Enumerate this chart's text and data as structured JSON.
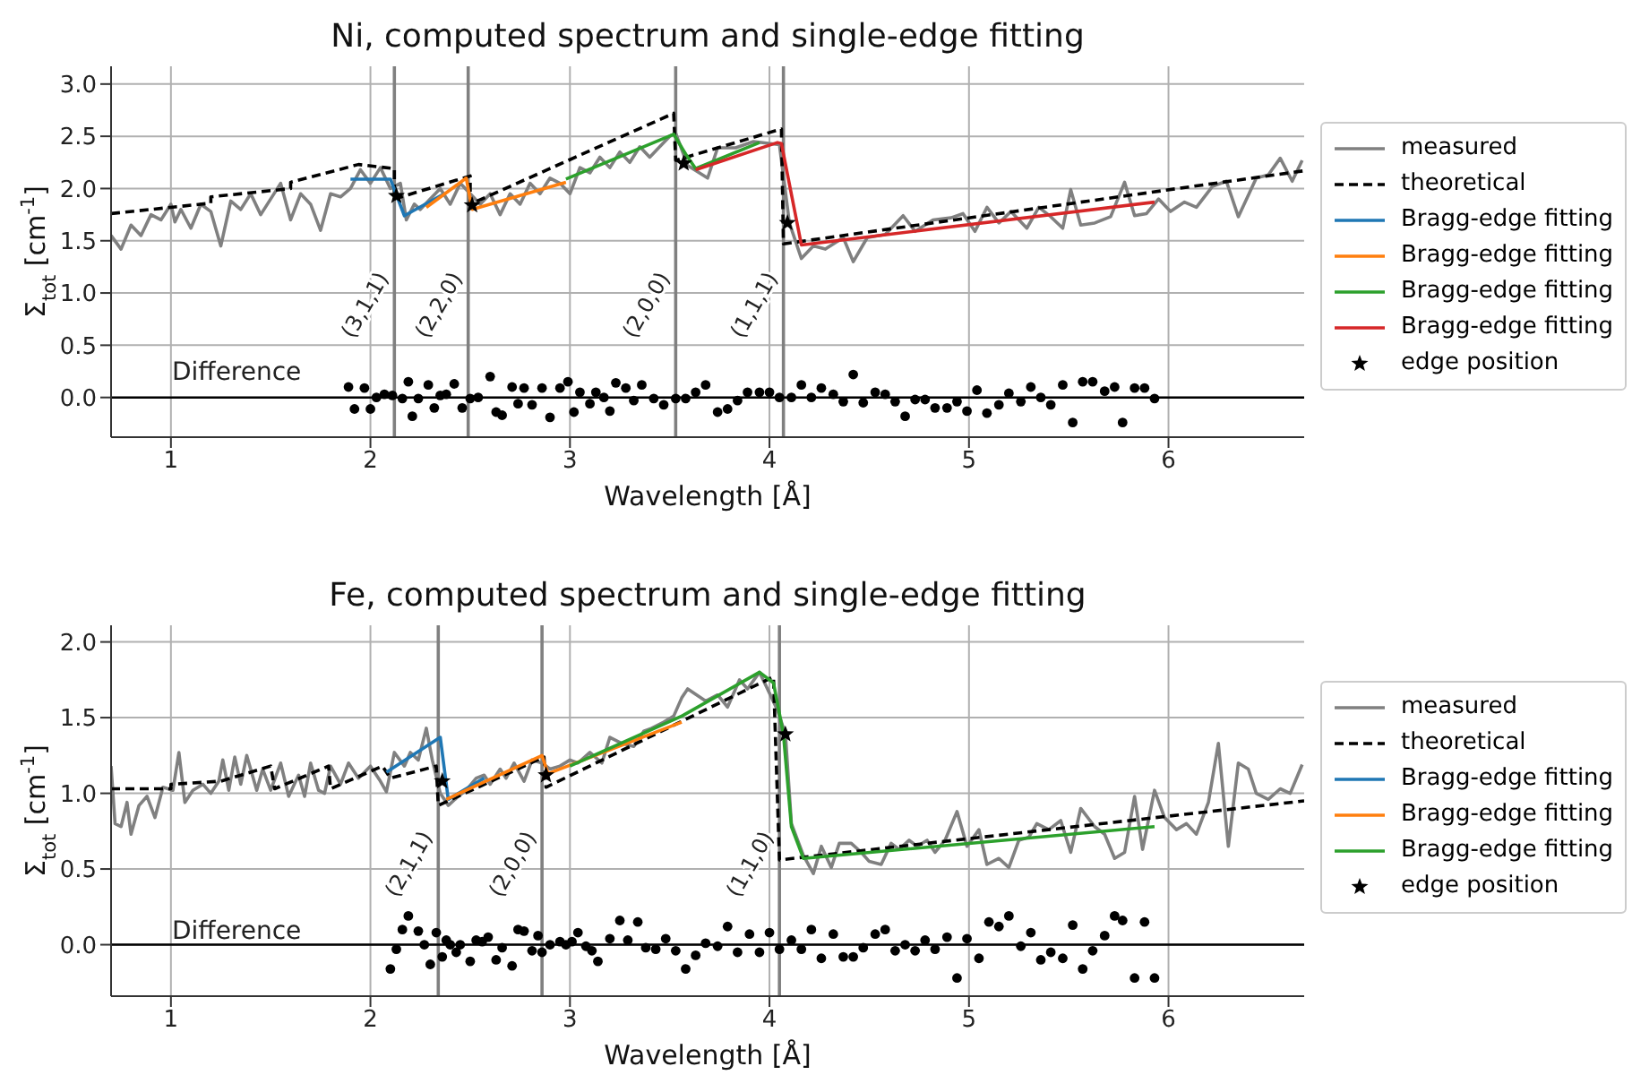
{
  "chart_data": [
    {
      "type": "line",
      "title": "Ni, computed spectrum and single-edge fitting",
      "xlabel": "Wavelength [Å]",
      "ylabel": "Σ$_{tot}$ [cm$^{-1}$]",
      "xlim": [
        0.7,
        6.68
      ],
      "xticks": [
        1,
        2,
        3,
        4,
        5,
        6
      ],
      "ylim": [
        -0.38,
        3.17
      ],
      "yticks": [
        {
          "value": 0,
          "label": "0.0"
        },
        {
          "value": 0.5,
          "label": "0.5"
        },
        {
          "value": 1,
          "label": "1.0"
        },
        {
          "value": 1.5,
          "label": "1.5"
        },
        {
          "value": 2,
          "label": "2.0"
        },
        {
          "value": 2.5,
          "label": "2.5"
        },
        {
          "value": 3,
          "label": "3.0"
        }
      ],
      "grid": true,
      "legend": "right",
      "series": [
        {
          "name": "measured",
          "color": "#808080",
          "x": [
            0.7,
            0.75,
            0.8,
            0.85,
            0.9,
            0.95,
            1.0,
            1.02,
            1.05,
            1.1,
            1.15,
            1.2,
            1.25,
            1.3,
            1.35,
            1.4,
            1.45,
            1.5,
            1.55,
            1.6,
            1.65,
            1.7,
            1.75,
            1.8,
            1.85,
            1.9,
            1.95,
            2.0,
            2.05,
            2.1,
            2.15,
            2.18,
            2.22,
            2.25,
            2.3,
            2.35,
            2.4,
            2.45,
            2.5,
            2.55,
            2.6,
            2.65,
            2.7,
            2.75,
            2.8,
            2.85,
            2.9,
            2.95,
            3.0,
            3.05,
            3.1,
            3.15,
            3.2,
            3.25,
            3.3,
            3.35,
            3.4,
            3.45,
            3.5,
            3.53,
            3.59,
            3.69,
            3.74,
            3.83,
            3.92,
            4.05,
            4.1,
            4.16,
            4.22,
            4.28,
            4.37,
            4.42,
            4.49,
            4.58,
            4.67,
            4.73,
            4.82,
            4.91,
            4.97,
            5.03,
            5.09,
            5.15,
            5.21,
            5.29,
            5.35,
            5.41,
            5.47,
            5.51,
            5.56,
            5.63,
            5.71,
            5.78,
            5.83,
            5.89,
            5.95,
            6.01,
            6.08,
            6.14,
            6.22,
            6.29,
            6.35,
            6.44,
            6.5,
            6.56,
            6.62,
            6.67
          ],
          "values": [
            1.55,
            1.42,
            1.65,
            1.55,
            1.75,
            1.7,
            1.85,
            1.68,
            1.8,
            1.62,
            1.85,
            1.78,
            1.45,
            1.88,
            1.8,
            1.95,
            1.75,
            1.9,
            2.05,
            1.7,
            1.95,
            1.85,
            1.6,
            1.95,
            1.92,
            2.0,
            2.18,
            2.05,
            2.2,
            2.0,
            2.05,
            1.7,
            1.85,
            1.8,
            1.9,
            2.0,
            1.85,
            2.05,
            1.95,
            1.85,
            1.95,
            1.75,
            1.95,
            1.85,
            2.05,
            1.95,
            2.1,
            2.05,
            1.95,
            2.2,
            2.15,
            2.3,
            2.2,
            2.35,
            2.25,
            2.4,
            2.3,
            2.4,
            2.5,
            2.53,
            2.22,
            2.1,
            2.39,
            2.39,
            2.45,
            2.42,
            1.67,
            1.33,
            1.45,
            1.42,
            1.53,
            1.3,
            1.53,
            1.56,
            1.74,
            1.59,
            1.7,
            1.72,
            1.76,
            1.59,
            1.82,
            1.67,
            1.78,
            1.62,
            1.82,
            1.73,
            1.62,
            1.99,
            1.65,
            1.67,
            1.73,
            2.06,
            1.74,
            1.76,
            1.9,
            1.78,
            1.87,
            1.82,
            2.02,
            2.07,
            1.73,
            2.1,
            2.13,
            2.29,
            2.07,
            2.27
          ]
        },
        {
          "name": "theoretical",
          "color": "#000000",
          "line_style": "dashed",
          "x": [
            0.7,
            1.2,
            1.2,
            1.6,
            1.6,
            1.94,
            2.12,
            2.12,
            2.5,
            2.5,
            3.52,
            3.53,
            4.06,
            4.07,
            6.68
          ],
          "values": [
            1.76,
            1.86,
            1.92,
            2.0,
            2.06,
            2.23,
            2.19,
            1.9,
            2.12,
            1.85,
            2.72,
            2.27,
            2.57,
            1.47,
            2.17
          ]
        },
        {
          "name": "Bragg-edge fitting",
          "color": "#1f77b4",
          "x": [
            1.9,
            2.1,
            2.17,
            2.37
          ],
          "values": [
            2.09,
            2.09,
            1.74,
            1.95
          ]
        },
        {
          "name": "Bragg-edge fitting",
          "color": "#ff7f0e",
          "x": [
            2.28,
            2.48,
            2.51,
            2.98
          ],
          "values": [
            1.82,
            2.1,
            1.8,
            2.06
          ]
        },
        {
          "name": "Bragg-edge fitting",
          "color": "#2ca02c",
          "x": [
            2.98,
            3.52,
            3.58,
            3.63,
            3.95
          ],
          "values": [
            2.09,
            2.52,
            2.33,
            2.19,
            2.44
          ]
        },
        {
          "name": "Bragg-edge fitting",
          "color": "#d62728",
          "x": [
            3.63,
            4.04,
            4.06,
            4.16,
            5.93
          ],
          "values": [
            2.18,
            2.44,
            2.43,
            1.46,
            1.87
          ]
        },
        {
          "name": "edge position",
          "type": "scatter",
          "marker": "star",
          "color": "#000000",
          "x": [
            2.13,
            2.51,
            3.57,
            4.09
          ],
          "values": [
            1.93,
            1.84,
            2.24,
            1.67
          ]
        },
        {
          "type": "scatter",
          "marker": "circle",
          "color": "#000000",
          "x": [
            1.89,
            1.92,
            1.97,
            2.0,
            2.03,
            2.07,
            2.11,
            2.16,
            2.19,
            2.21,
            2.24,
            2.29,
            2.32,
            2.35,
            2.38,
            2.42,
            2.46,
            2.5,
            2.54,
            2.6,
            2.63,
            2.66,
            2.71,
            2.74,
            2.77,
            2.81,
            2.86,
            2.9,
            2.95,
            2.99,
            3.02,
            3.05,
            3.1,
            3.13,
            3.17,
            3.2,
            3.23,
            3.28,
            3.32,
            3.36,
            3.42,
            3.47,
            3.53,
            3.58,
            3.63,
            3.68,
            3.74,
            3.79,
            3.84,
            3.89,
            3.95,
            4.0,
            4.05,
            4.11,
            4.16,
            4.21,
            4.26,
            4.32,
            4.37,
            4.42,
            4.47,
            4.53,
            4.58,
            4.63,
            4.68,
            4.73,
            4.78,
            4.83,
            4.89,
            4.94,
            4.99,
            5.04,
            5.09,
            5.15,
            5.2,
            5.26,
            5.31,
            5.36,
            5.41,
            5.47,
            5.52,
            5.57,
            5.62,
            5.68,
            5.73,
            5.77,
            5.83,
            5.88,
            5.93
          ],
          "values": [
            0.1,
            -0.11,
            0.09,
            -0.11,
            0.0,
            0.03,
            0.02,
            -0.01,
            0.15,
            -0.18,
            -0.01,
            0.12,
            -0.1,
            0.02,
            0.03,
            0.13,
            -0.1,
            -0.01,
            0.0,
            0.2,
            -0.14,
            -0.17,
            0.1,
            -0.06,
            0.09,
            -0.07,
            0.09,
            -0.19,
            0.09,
            0.15,
            -0.14,
            0.05,
            -0.06,
            0.05,
            0.0,
            -0.13,
            0.14,
            0.09,
            -0.03,
            0.12,
            -0.01,
            -0.07,
            -0.01,
            -0.01,
            0.05,
            0.12,
            -0.14,
            -0.11,
            -0.03,
            0.05,
            0.05,
            0.05,
            0.0,
            0.0,
            0.12,
            0.0,
            0.09,
            0.03,
            -0.04,
            0.22,
            -0.05,
            0.05,
            0.03,
            -0.04,
            -0.18,
            -0.02,
            -0.02,
            -0.1,
            -0.1,
            -0.04,
            -0.13,
            0.07,
            -0.15,
            -0.07,
            0.04,
            -0.04,
            0.1,
            0.0,
            -0.07,
            0.12,
            -0.24,
            0.15,
            0.15,
            0.06,
            0.1,
            -0.24,
            0.09,
            0.09,
            -0.01
          ]
        }
      ],
      "ref_lines": [
        {
          "axis": "x",
          "value": 2.12,
          "label": "(3,1,1)",
          "color": "#808080"
        },
        {
          "axis": "x",
          "value": 2.49,
          "label": "(2,2,0)",
          "color": "#808080"
        },
        {
          "axis": "x",
          "value": 3.53,
          "label": "(2,0,0)",
          "color": "#808080"
        },
        {
          "axis": "x",
          "value": 4.07,
          "label": "(1,1,1)",
          "color": "#808080"
        },
        {
          "axis": "y",
          "value": 0,
          "color": "#000000"
        }
      ],
      "annotations": [
        "Difference"
      ]
    },
    {
      "type": "line",
      "title": "Fe, computed spectrum and single-edge fitting",
      "xlabel": "Wavelength [Å]",
      "ylabel": "Σ$_{tot}$ [cm$^{-1}$]",
      "xlim": [
        0.7,
        6.68
      ],
      "xticks": [
        1,
        2,
        3,
        4,
        5,
        6
      ],
      "ylim": [
        -0.34,
        2.11
      ],
      "yticks": [
        {
          "value": 0,
          "label": "0.0"
        },
        {
          "value": 0.5,
          "label": "0.5"
        },
        {
          "value": 1,
          "label": "1.0"
        },
        {
          "value": 1.5,
          "label": "1.5"
        },
        {
          "value": 2,
          "label": "2.0"
        }
      ],
      "grid": true,
      "legend": "right",
      "series": [
        {
          "name": "measured",
          "color": "#808080",
          "x": [
            0.7,
            0.72,
            0.75,
            0.78,
            0.8,
            0.84,
            0.88,
            0.92,
            0.96,
            1.01,
            1.04,
            1.07,
            1.11,
            1.16,
            1.2,
            1.24,
            1.26,
            1.29,
            1.32,
            1.35,
            1.38,
            1.43,
            1.46,
            1.5,
            1.55,
            1.59,
            1.64,
            1.67,
            1.7,
            1.74,
            1.77,
            1.8,
            1.85,
            1.89,
            1.94,
            2.0,
            2.05,
            2.08,
            2.12,
            2.17,
            2.2,
            2.24,
            2.28,
            2.31,
            2.35,
            2.39,
            2.44,
            2.48,
            2.53,
            2.57,
            2.6,
            2.65,
            2.68,
            2.72,
            2.77,
            2.81,
            2.86,
            2.9,
            2.95,
            3.0,
            3.04,
            3.1,
            3.16,
            3.2,
            3.26,
            3.32,
            3.37,
            3.41,
            3.47,
            3.52,
            3.56,
            3.59,
            3.68,
            3.74,
            3.79,
            3.85,
            3.89,
            3.95,
            3.99,
            4.04,
            4.08,
            4.11,
            4.17,
            4.22,
            4.26,
            4.31,
            4.35,
            4.41,
            4.46,
            4.5,
            4.56,
            4.61,
            4.65,
            4.7,
            4.74,
            4.79,
            4.83,
            4.88,
            4.94,
            4.99,
            5.05,
            5.09,
            5.15,
            5.2,
            5.25,
            5.3,
            5.34,
            5.4,
            5.46,
            5.51,
            5.56,
            5.63,
            5.68,
            5.73,
            5.78,
            5.83,
            5.87,
            5.93,
            5.98,
            6.04,
            6.09,
            6.14,
            6.2,
            6.25,
            6.3,
            6.35,
            6.4,
            6.44,
            6.5,
            6.56,
            6.61,
            6.67
          ],
          "values": [
            1.18,
            0.8,
            0.78,
            0.94,
            0.73,
            0.92,
            0.98,
            0.84,
            1.04,
            1.02,
            1.27,
            0.94,
            1.02,
            1.06,
            1.0,
            1.08,
            1.22,
            1.02,
            1.24,
            1.06,
            1.25,
            1.02,
            1.16,
            1.02,
            1.2,
            0.98,
            1.12,
            0.98,
            1.2,
            1.02,
            1.0,
            1.18,
            1.06,
            1.2,
            1.1,
            1.18,
            1.08,
            1.01,
            1.27,
            1.18,
            1.27,
            1.22,
            1.43,
            1.22,
            1.0,
            0.92,
            0.98,
            1.02,
            1.1,
            1.12,
            1.06,
            1.16,
            1.1,
            1.2,
            1.08,
            1.22,
            1.2,
            1.16,
            1.18,
            1.22,
            1.2,
            1.27,
            1.2,
            1.37,
            1.33,
            1.31,
            1.41,
            1.43,
            1.47,
            1.51,
            1.63,
            1.69,
            1.61,
            1.65,
            1.57,
            1.75,
            1.69,
            1.8,
            1.69,
            1.55,
            1.39,
            0.8,
            0.59,
            0.47,
            0.65,
            0.51,
            0.67,
            0.67,
            0.61,
            0.55,
            0.53,
            0.67,
            0.63,
            0.69,
            0.65,
            0.69,
            0.61,
            0.69,
            0.88,
            0.65,
            0.76,
            0.53,
            0.57,
            0.51,
            0.69,
            0.71,
            0.8,
            0.76,
            0.82,
            0.61,
            0.9,
            0.78,
            0.73,
            0.57,
            0.61,
            0.98,
            0.63,
            1.02,
            0.84,
            0.76,
            0.8,
            0.73,
            0.94,
            1.33,
            0.65,
            1.2,
            1.16,
            1.0,
            0.96,
            1.03,
            1.0,
            1.19
          ]
        },
        {
          "name": "theoretical",
          "color": "#000000",
          "line_style": "dashed",
          "x": [
            0.7,
            1.0,
            1.0,
            1.25,
            1.5,
            1.52,
            1.79,
            1.8,
            2.06,
            2.1,
            2.33,
            2.34,
            2.87,
            2.88,
            4.02,
            4.05,
            6.68
          ],
          "values": [
            1.03,
            1.03,
            1.06,
            1.08,
            1.18,
            1.03,
            1.18,
            1.03,
            1.18,
            1.1,
            1.18,
            0.92,
            1.24,
            1.04,
            1.77,
            0.56,
            0.95
          ]
        },
        {
          "name": "Bragg-edge fitting",
          "color": "#1f77b4",
          "x": [
            2.08,
            2.35,
            2.39,
            2.57
          ],
          "values": [
            1.14,
            1.37,
            0.96,
            1.1
          ]
        },
        {
          "name": "Bragg-edge fitting",
          "color": "#ff7f0e",
          "x": [
            2.38,
            2.86,
            2.89,
            3.56
          ],
          "values": [
            0.96,
            1.25,
            1.13,
            1.47
          ]
        },
        {
          "name": "Bragg-edge fitting",
          "color": "#2ca02c",
          "x": [
            3.0,
            3.56,
            3.95,
            4.02,
            4.07,
            4.11,
            4.17,
            5.93
          ],
          "values": [
            1.18,
            1.51,
            1.8,
            1.73,
            1.39,
            0.78,
            0.57,
            0.78
          ]
        },
        {
          "name": "edge position",
          "type": "scatter",
          "marker": "star",
          "color": "#000000",
          "x": [
            2.36,
            2.88,
            4.08
          ],
          "values": [
            1.08,
            1.12,
            1.39
          ]
        },
        {
          "type": "scatter",
          "marker": "circle",
          "color": "#000000",
          "x": [
            2.1,
            2.13,
            2.16,
            2.19,
            2.24,
            2.27,
            2.3,
            2.33,
            2.36,
            2.38,
            2.4,
            2.43,
            2.45,
            2.5,
            2.53,
            2.56,
            2.59,
            2.63,
            2.66,
            2.71,
            2.74,
            2.77,
            2.81,
            2.84,
            2.86,
            2.9,
            2.95,
            2.98,
            3.01,
            3.04,
            3.08,
            3.11,
            3.14,
            3.2,
            3.25,
            3.29,
            3.34,
            3.38,
            3.43,
            3.48,
            3.53,
            3.58,
            3.63,
            3.68,
            3.74,
            3.79,
            3.84,
            3.9,
            3.95,
            4.0,
            4.05,
            4.11,
            4.16,
            4.21,
            4.26,
            4.32,
            4.37,
            4.42,
            4.47,
            4.53,
            4.58,
            4.63,
            4.68,
            4.73,
            4.78,
            4.83,
            4.89,
            4.94,
            4.99,
            5.05,
            5.1,
            5.15,
            5.2,
            5.26,
            5.31,
            5.36,
            5.41,
            5.47,
            5.52,
            5.57,
            5.62,
            5.68,
            5.73,
            5.77,
            5.83,
            5.88,
            5.93
          ],
          "values": [
            -0.16,
            -0.03,
            0.1,
            0.19,
            0.09,
            0.0,
            -0.13,
            0.08,
            -0.08,
            0.03,
            0.0,
            -0.05,
            0.0,
            -0.11,
            0.03,
            0.02,
            0.05,
            -0.1,
            -0.02,
            -0.14,
            0.1,
            0.09,
            -0.04,
            0.06,
            -0.05,
            0.0,
            0.02,
            0.0,
            0.02,
            0.08,
            -0.01,
            -0.04,
            -0.11,
            0.04,
            0.16,
            0.03,
            0.15,
            -0.02,
            -0.03,
            0.04,
            -0.04,
            -0.16,
            -0.07,
            0.01,
            -0.01,
            0.12,
            -0.05,
            0.07,
            -0.05,
            0.08,
            -0.03,
            0.03,
            -0.03,
            0.1,
            -0.09,
            0.07,
            -0.08,
            -0.08,
            -0.02,
            0.07,
            0.1,
            -0.04,
            0.0,
            -0.04,
            0.03,
            -0.03,
            0.05,
            -0.22,
            0.04,
            -0.09,
            0.15,
            0.12,
            0.19,
            -0.01,
            0.08,
            -0.1,
            -0.05,
            -0.09,
            0.13,
            -0.16,
            -0.04,
            0.06,
            0.19,
            0.16,
            -0.22,
            0.15,
            -0.22
          ]
        }
      ],
      "ref_lines": [
        {
          "axis": "x",
          "value": 2.34,
          "label": "(2,1,1)",
          "color": "#808080"
        },
        {
          "axis": "x",
          "value": 2.86,
          "label": "(2,0,0)",
          "color": "#808080"
        },
        {
          "axis": "x",
          "value": 4.05,
          "label": "(1,1,0)",
          "color": "#808080"
        },
        {
          "axis": "y",
          "value": 0,
          "color": "#000000"
        }
      ],
      "annotations": [
        "Difference"
      ]
    }
  ]
}
